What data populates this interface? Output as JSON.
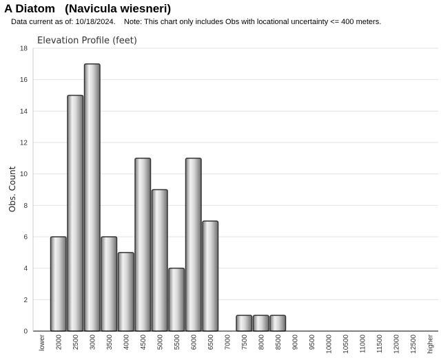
{
  "header": {
    "title": "A Diatom   (Navicula wiesneri)",
    "subtitle": "Data current as of: 10/18/2024.    Note: This chart only includes Obs with locational uncertainty <= 400 meters."
  },
  "chart_data": {
    "type": "bar",
    "title": "Elevation Profile (feet)",
    "xlabel": "",
    "ylabel": "Obs. Count",
    "ylim": [
      0,
      18
    ],
    "yticks": [
      0,
      2,
      4,
      6,
      8,
      10,
      12,
      14,
      16,
      18
    ],
    "grid": true,
    "categories": [
      "lower",
      "2000",
      "2500",
      "3000",
      "3500",
      "4000",
      "4500",
      "5000",
      "5500",
      "6000",
      "6500",
      "7000",
      "7500",
      "8000",
      "8500",
      "9000",
      "9500",
      "10000",
      "10500",
      "11000",
      "11500",
      "12000",
      "12500",
      "higher"
    ],
    "values": [
      0,
      6,
      15,
      17,
      6,
      5,
      11,
      9,
      4,
      11,
      7,
      0,
      1,
      1,
      1,
      0,
      0,
      0,
      0,
      0,
      0,
      0,
      0,
      0
    ],
    "bar_color": "#a8a8a8",
    "bar_edge_color": "#333333"
  }
}
